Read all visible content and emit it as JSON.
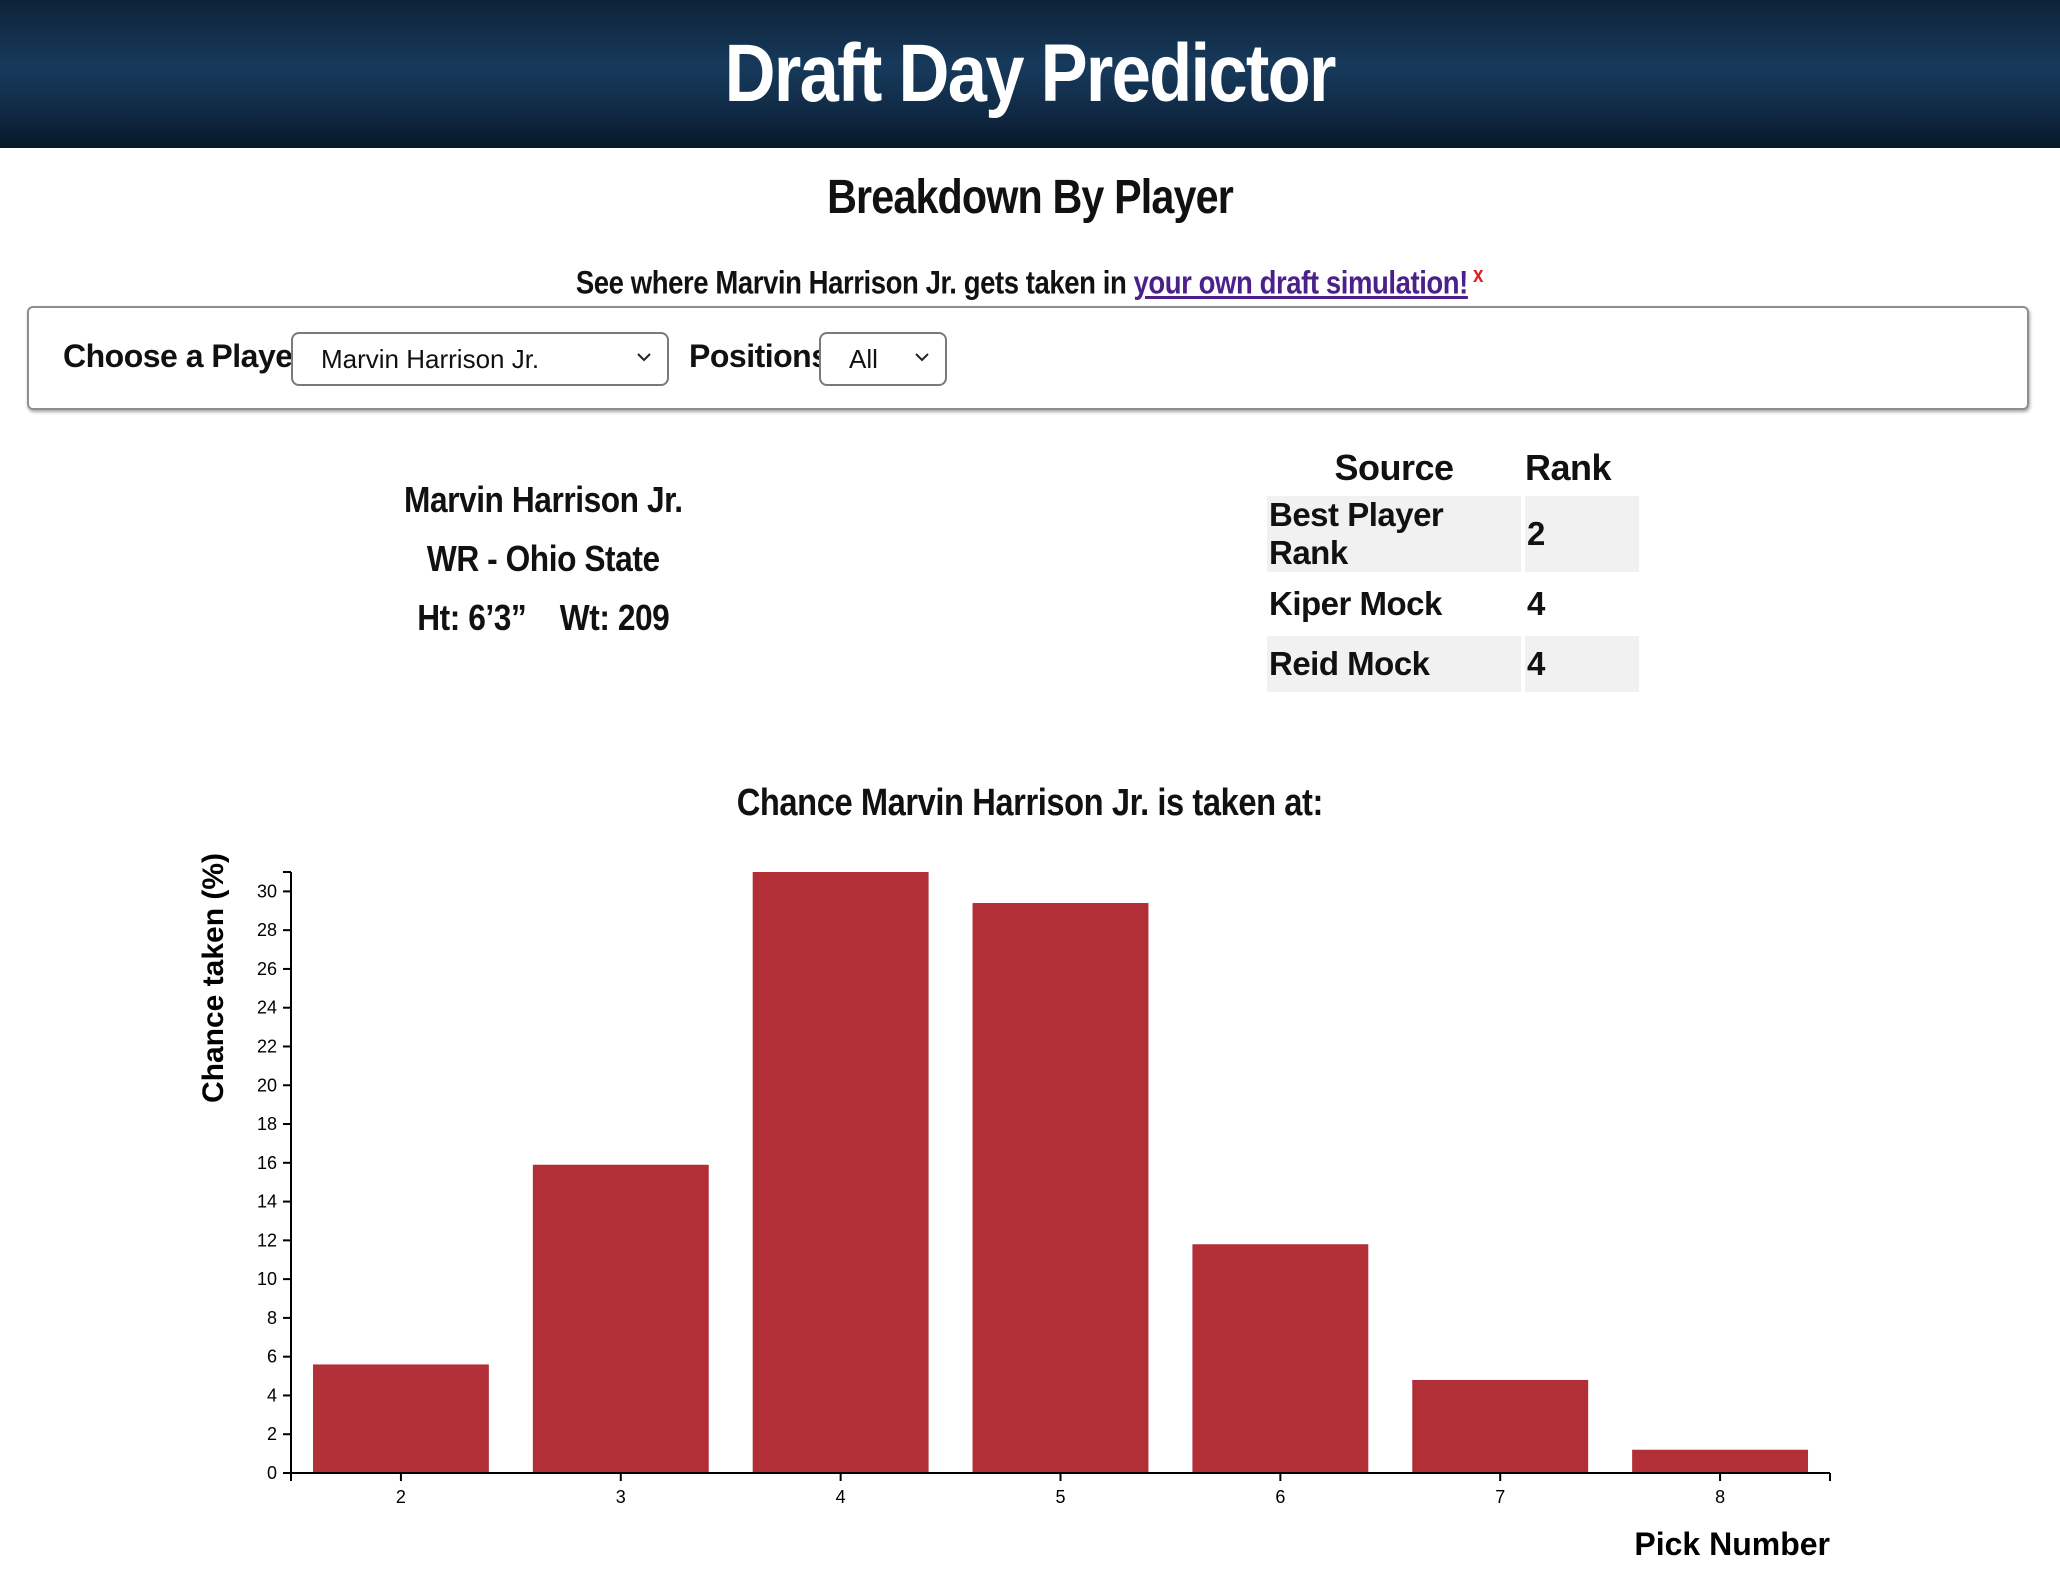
{
  "header": {
    "title": "Draft Day Predictor"
  },
  "section": {
    "title": "Breakdown By Player"
  },
  "promo": {
    "text_before": "See where Marvin Harrison Jr. gets taken in ",
    "link_text": "your own draft simulation!",
    "close_label": "x"
  },
  "controls": {
    "player_label": "Choose a Player:",
    "player_selected": "Marvin Harrison Jr.",
    "positions_label": "Positions:",
    "positions_selected": "All"
  },
  "player": {
    "name": "Marvin Harrison Jr.",
    "position_school": "WR - Ohio State",
    "height_weight": "Ht: 6’3”    Wt: 209"
  },
  "rank_table": {
    "headers": [
      "Source",
      "Rank"
    ],
    "rows": [
      {
        "source": "Best Player Rank",
        "rank": "2"
      },
      {
        "source": "Kiper Mock",
        "rank": "4"
      },
      {
        "source": "Reid Mock",
        "rank": "4"
      }
    ]
  },
  "chart": {
    "title": "Chance Marvin Harrison Jr. is taken at:"
  },
  "colors": {
    "bar": "#b22f38",
    "header_bg": "#173a5c",
    "link": "#4b1f8c",
    "close": "#e02020"
  },
  "chart_data": {
    "type": "bar",
    "categories": [
      "2",
      "3",
      "4",
      "5",
      "6",
      "7",
      "8"
    ],
    "values": [
      5.6,
      15.9,
      31.0,
      29.4,
      11.8,
      4.8,
      1.2
    ],
    "xlabel": "Pick Number",
    "ylabel": "Chance taken (%)",
    "ylim": [
      0,
      31
    ],
    "yticks": [
      0,
      2,
      4,
      6,
      8,
      10,
      12,
      14,
      16,
      18,
      20,
      22,
      24,
      26,
      28,
      30
    ],
    "grid": false
  }
}
